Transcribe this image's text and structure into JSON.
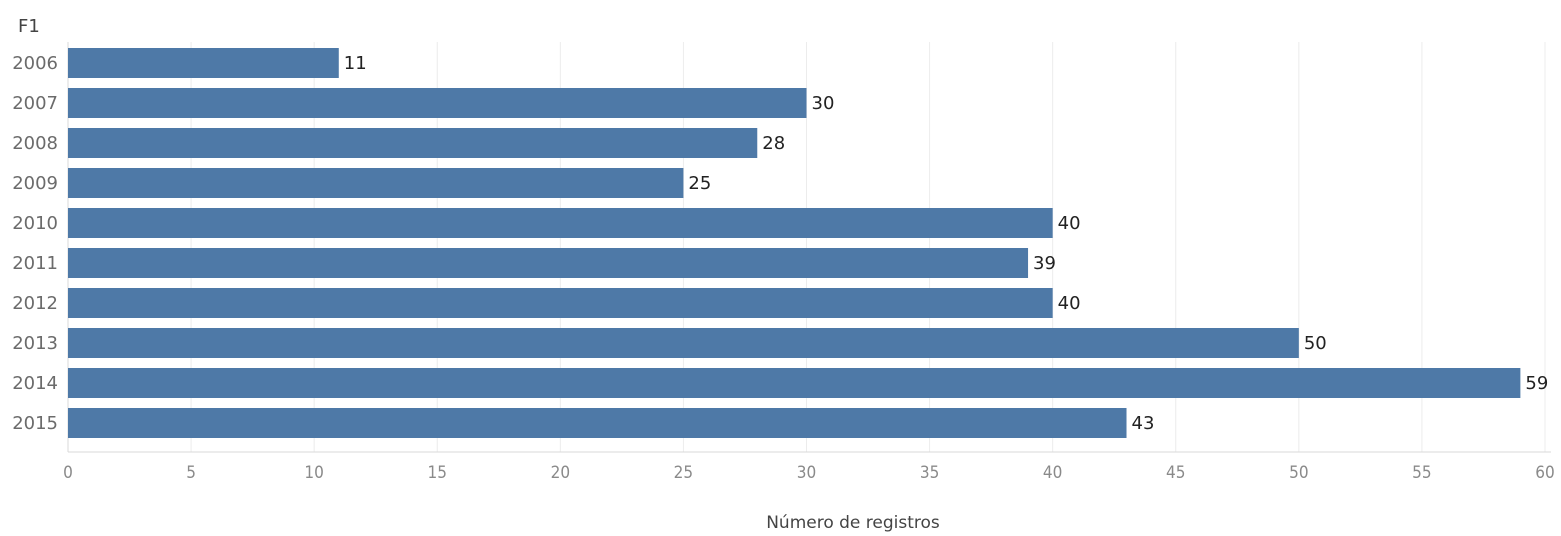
{
  "chart_data": {
    "type": "bar",
    "orientation": "horizontal",
    "dimension_label": "F1",
    "categories": [
      "2006",
      "2007",
      "2008",
      "2009",
      "2010",
      "2011",
      "2012",
      "2013",
      "2014",
      "2015"
    ],
    "values": [
      11,
      30,
      28,
      25,
      40,
      39,
      40,
      50,
      59,
      43
    ],
    "xlabel": "Número de registros",
    "ylabel": "",
    "xlim": [
      0,
      60
    ],
    "x_ticks": [
      0,
      5,
      10,
      15,
      20,
      25,
      30,
      35,
      40,
      45,
      50,
      55,
      60
    ],
    "bar_color": "#4e79a7",
    "grid": true,
    "data_labels": true
  }
}
